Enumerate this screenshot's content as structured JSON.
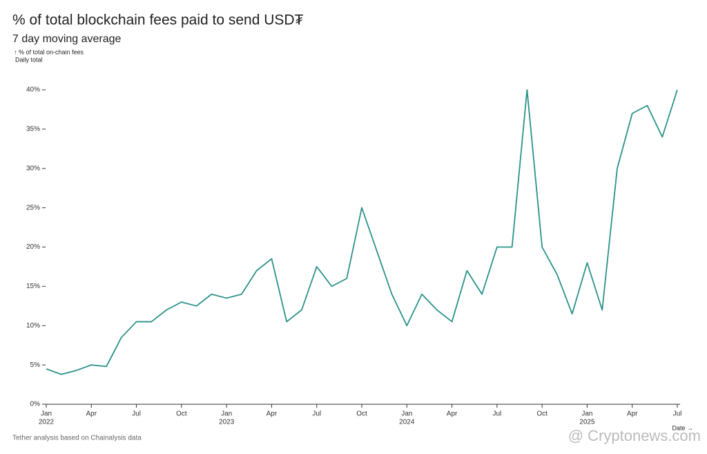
{
  "chart_data": {
    "type": "line",
    "title": "% of total blockchain fees paid to send USD₮",
    "subtitle": "7 day moving average",
    "y_label": "↑ % of total on-chain fees",
    "y_sublabel": "Daily total",
    "x_label": "Date →",
    "source": "Tether analysis based on Chainalysis data",
    "watermark": "@ Cryptonews.com",
    "x": [
      "2022-01",
      "2022-02",
      "2022-03",
      "2022-04",
      "2022-05",
      "2022-06",
      "2022-07",
      "2022-08",
      "2022-09",
      "2022-10",
      "2022-11",
      "2022-12",
      "2023-01",
      "2023-02",
      "2023-03",
      "2023-04",
      "2023-05",
      "2023-06",
      "2023-07",
      "2023-08",
      "2023-09",
      "2023-10",
      "2023-11",
      "2023-12",
      "2024-01",
      "2024-02",
      "2024-03",
      "2024-04",
      "2024-05",
      "2024-06",
      "2024-07",
      "2024-08",
      "2024-09",
      "2024-10",
      "2024-11",
      "2024-12",
      "2025-01",
      "2025-02",
      "2025-03",
      "2025-04",
      "2025-05",
      "2025-06",
      "2025-07"
    ],
    "series": [
      {
        "name": "Daily total",
        "color": "#2a9189",
        "values": [
          4.5,
          3.8,
          4.3,
          5,
          4.8,
          8.5,
          10.5,
          10.5,
          12,
          13,
          12.5,
          14,
          13.5,
          14,
          17,
          18.5,
          10.5,
          12,
          17.5,
          15,
          16,
          25,
          19.5,
          14,
          10,
          14,
          12,
          10.5,
          17,
          14,
          20,
          20,
          40,
          20,
          16.5,
          11.5,
          18,
          12,
          30,
          37,
          38,
          34,
          40
        ]
      }
    ],
    "xlim": [
      "2022-01",
      "2025-07"
    ],
    "xticks": [
      {
        "value": "2022-01",
        "label": "Jan",
        "sublabel": "2022"
      },
      {
        "value": "2022-04",
        "label": "Apr"
      },
      {
        "value": "2022-07",
        "label": "Jul"
      },
      {
        "value": "2022-10",
        "label": "Oct"
      },
      {
        "value": "2023-01",
        "label": "Jan",
        "sublabel": "2023"
      },
      {
        "value": "2023-04",
        "label": "Apr"
      },
      {
        "value": "2023-07",
        "label": "Jul"
      },
      {
        "value": "2023-10",
        "label": "Oct"
      },
      {
        "value": "2024-01",
        "label": "Jan",
        "sublabel": "2024"
      },
      {
        "value": "2024-04",
        "label": "Apr"
      },
      {
        "value": "2024-07",
        "label": "Jul"
      },
      {
        "value": "2024-10",
        "label": "Oct"
      },
      {
        "value": "2025-01",
        "label": "Jan",
        "sublabel": "2025"
      },
      {
        "value": "2025-04",
        "label": "Apr"
      },
      {
        "value": "2025-07",
        "label": "Jul"
      }
    ],
    "ylim": [
      0,
      40
    ],
    "yticks": [
      {
        "value": 0,
        "label": "0%"
      },
      {
        "value": 5,
        "label": "5%"
      },
      {
        "value": 10,
        "label": "10%"
      },
      {
        "value": 15,
        "label": "15%"
      },
      {
        "value": 20,
        "label": "20%"
      },
      {
        "value": 25,
        "label": "25%"
      },
      {
        "value": 30,
        "label": "30%"
      },
      {
        "value": 35,
        "label": "35%"
      },
      {
        "value": 40,
        "label": "40%"
      }
    ]
  }
}
